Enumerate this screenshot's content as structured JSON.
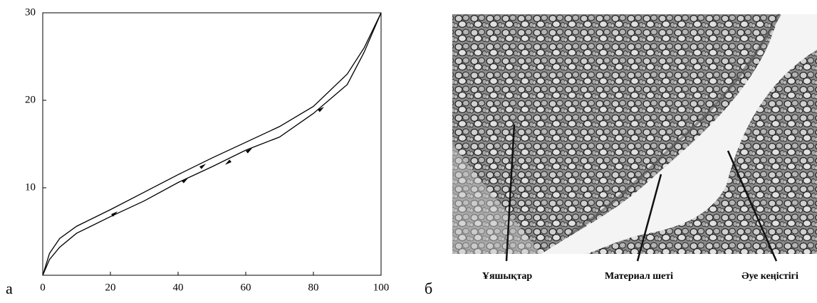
{
  "chart_data": {
    "type": "line",
    "x": [
      0,
      2,
      5,
      10,
      20,
      30,
      40,
      50,
      60,
      70,
      80,
      90,
      95,
      100
    ],
    "series": [
      {
        "color": "#000000",
        "values": [
          0,
          2.5,
          4.2,
          5.6,
          7.5,
          9.5,
          11.5,
          13.4,
          15.2,
          17.0,
          19.3,
          23.0,
          26.0,
          30
        ]
      },
      {
        "color": "#000000",
        "values": [
          0,
          1.8,
          3.2,
          4.8,
          6.7,
          8.5,
          10.6,
          12.4,
          14.3,
          15.8,
          18.5,
          21.8,
          25.5,
          30
        ]
      }
    ],
    "xlim": [
      0,
      100
    ],
    "ylim": [
      0,
      30
    ],
    "xticks": [
      0,
      20,
      40,
      60,
      80,
      100
    ],
    "yticks": [
      10,
      20,
      30
    ],
    "grid": false
  },
  "panel_labels": [
    "а",
    "б"
  ],
  "micrograph": {
    "labels": [
      "Ұяшықтар",
      "Материал шеті",
      "Әуе кеңістігі"
    ]
  }
}
